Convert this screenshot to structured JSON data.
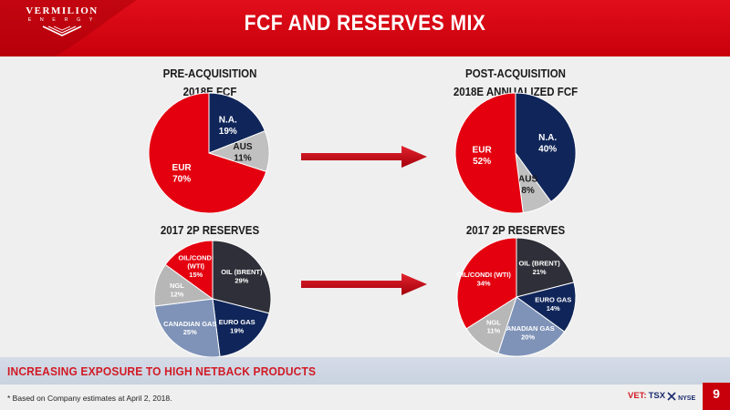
{
  "header": {
    "logo_top": "VERMILION",
    "logo_bottom": "E N E R G Y",
    "title": "FCF AND RESERVES MIX"
  },
  "colors": {
    "brand_red": "#c8000c",
    "navy": "#10265a",
    "grey": "#c0c0c0",
    "charcoal": "#2e2f38",
    "steel_blue": "#7f93b8",
    "light_grey": "#b7b7b7",
    "tagline_red": "#d11a24"
  },
  "chart_data": [
    {
      "type": "pie",
      "title_line1": "PRE-ACQUISITION",
      "title_line2": "2018E FCF",
      "slices": [
        {
          "label": "N.A.",
          "value": 19,
          "color": "#10265a",
          "text_color": "#ffffff"
        },
        {
          "label": "AUS",
          "value": 11,
          "color": "#c0c0c0",
          "text_color": "#1a1a1a"
        },
        {
          "label": "EUR",
          "value": 70,
          "color": "#e4000f",
          "text_color": "#ffffff"
        }
      ]
    },
    {
      "type": "pie",
      "title_line1": "POST-ACQUISITION",
      "title_line2": "2018E ANNUALIZED FCF",
      "slices": [
        {
          "label": "N.A.",
          "value": 40,
          "color": "#10265a",
          "text_color": "#ffffff"
        },
        {
          "label": "AUS",
          "value": 8,
          "color": "#c0c0c0",
          "text_color": "#1a1a1a"
        },
        {
          "label": "EUR",
          "value": 52,
          "color": "#e4000f",
          "text_color": "#ffffff"
        }
      ]
    },
    {
      "type": "pie",
      "title_line1": "2017 2P RESERVES",
      "slices": [
        {
          "label": "OIL (BRENT)",
          "value": 29,
          "color": "#2e2f38",
          "text_color": "#ffffff"
        },
        {
          "label": "EURO GAS",
          "value": 19,
          "color": "#10265a",
          "text_color": "#ffffff"
        },
        {
          "label": "CANADIAN GAS",
          "value": 25,
          "color": "#7f93b8",
          "text_color": "#ffffff"
        },
        {
          "label": "NGL",
          "value": 12,
          "color": "#b7b7b7",
          "text_color": "#ffffff"
        },
        {
          "label": "OIL/CONDI (WTI)",
          "value": 15,
          "color": "#e4000f",
          "text_color": "#ffffff"
        }
      ]
    },
    {
      "type": "pie",
      "title_line1": "2017 2P RESERVES",
      "slices": [
        {
          "label": "OIL (BRENT)",
          "value": 21,
          "color": "#2e2f38",
          "text_color": "#ffffff"
        },
        {
          "label": "EURO GAS",
          "value": 14,
          "color": "#10265a",
          "text_color": "#ffffff"
        },
        {
          "label": "CANADIAN GAS",
          "value": 20,
          "color": "#7f93b8",
          "text_color": "#ffffff"
        },
        {
          "label": "NGL",
          "value": 11,
          "color": "#b7b7b7",
          "text_color": "#ffffff"
        },
        {
          "label": "OIL/CONDI (WTI)",
          "value": 34,
          "color": "#e4000f",
          "text_color": "#ffffff"
        }
      ]
    }
  ],
  "footer": {
    "tagline": "INCREASING EXPOSURE TO HIGH NETBACK PRODUCTS",
    "footnote": "* Based on Company estimates at April 2, 2018.",
    "ticker_label": "VET:",
    "exchange_tsx": "TSX",
    "exchange_nyse": "NYSE",
    "page_number": "9"
  }
}
